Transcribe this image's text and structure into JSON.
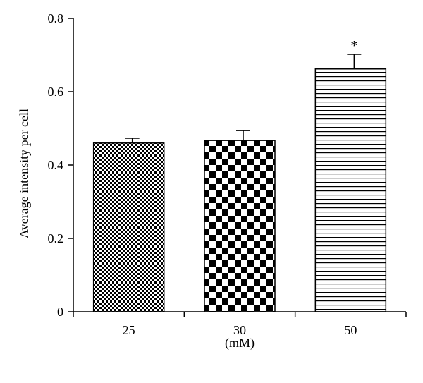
{
  "chart_data": {
    "type": "bar",
    "title": "",
    "xlabel": "(mM)",
    "ylabel": "Average intensity per cell",
    "categories": [
      "25",
      "30",
      "50"
    ],
    "values": [
      0.46,
      0.467,
      0.662
    ],
    "errors": [
      0.013,
      0.027,
      0.04
    ],
    "annotations": [
      "",
      "",
      "*"
    ],
    "patterns": [
      "small-checker",
      "large-checker",
      "horizontal-stripes"
    ],
    "ylim": [
      0,
      0.8
    ],
    "yticks": [
      "0",
      "0.2",
      "0.4",
      "0.6",
      "0.8"
    ],
    "grid": false,
    "legend": "none",
    "colors": {
      "bar_fill": "#000000",
      "bar_background": "#ffffff",
      "axis": "#000000"
    }
  }
}
